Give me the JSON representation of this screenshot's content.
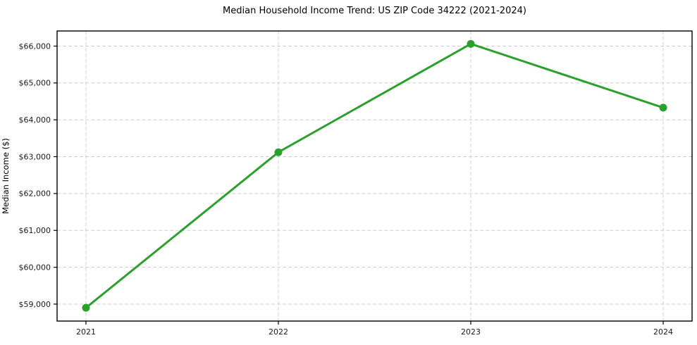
{
  "chart_data": {
    "type": "line",
    "title": "Median Household Income Trend: US ZIP Code 34222 (2021-2024)",
    "xlabel": "",
    "ylabel": "Median Income ($)",
    "x": [
      2021,
      2022,
      2023,
      2024
    ],
    "x_tick_labels": [
      "2021",
      "2022",
      "2023",
      "2024"
    ],
    "values": [
      58900,
      63120,
      66060,
      64330
    ],
    "series_name": "Median Household Income",
    "y_ticks": [
      59000,
      60000,
      61000,
      62000,
      63000,
      64000,
      65000,
      66000
    ],
    "y_tick_labels": [
      "$59,000",
      "$60,000",
      "$61,000",
      "$62,000",
      "$63,000",
      "$64,000",
      "$65,000",
      "$66,000"
    ],
    "xlim": [
      2020.85,
      2024.15
    ],
    "ylim": [
      58540,
      66410
    ],
    "grid": true,
    "grid_line_style": "dashed",
    "legend": false,
    "line_color": "#2ca02c",
    "marker_color": "#2ca02c",
    "marker_shape": "circle",
    "grid_color": "#c9c9c9",
    "axis_color": "#000000",
    "tick_label_color": "#1a1a1a",
    "background_color": "#ffffff"
  }
}
